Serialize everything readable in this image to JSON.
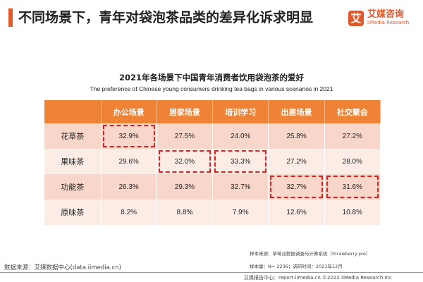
{
  "header": {
    "title": "不同场景下，青年对袋泡茶品类的差异化诉求明显",
    "brand_color": "#e0592b"
  },
  "logo": {
    "mark": "艾",
    "name_cn": "艾媒咨询",
    "name_en": "iiMedia Research"
  },
  "chart_title_cn": "2021年各场景下中国青年消费者饮用袋泡茶的爱好",
  "chart_title_en": "The preference of Chinese young consumers drinking tea bags in various scenarios in 2021",
  "chart_data": {
    "type": "table",
    "columns": [
      "办公场景",
      "居家场景",
      "培训学习",
      "出差场景",
      "社交聚会"
    ],
    "rows": [
      {
        "label": "花草茶",
        "values": [
          "32.9%",
          "27.5%",
          "24.0%",
          "25.8%",
          "27.2%"
        ],
        "highlight": [
          0
        ]
      },
      {
        "label": "果味茶",
        "values": [
          "29.6%",
          "32.0%",
          "33.3%",
          "27.2%",
          "28.0%"
        ],
        "highlight": [
          1,
          2
        ]
      },
      {
        "label": "功能茶",
        "values": [
          "26.3%",
          "29.3%",
          "32.7%",
          "32.7%",
          "31.6%"
        ],
        "highlight": [
          3,
          4
        ]
      },
      {
        "label": "原味茶",
        "values": [
          "8.2%",
          "8.8%",
          "7.9%",
          "12.6%",
          "10.8%"
        ],
        "highlight": []
      }
    ],
    "header_color": "#ee8235",
    "highlight_color": "#e02020"
  },
  "source": "数据来源：艾媒数据中心(data.iimedia.cn)",
  "sample_source": "样本来源：草莓派数据调查与计算系统（Strawberry pie）",
  "sample_size": "样本量：N= 2236；调研时间：2021年12月",
  "footer": "艾媒报告中心：report.iimedia.cn    ©2022  iiMedia Research  Inc"
}
